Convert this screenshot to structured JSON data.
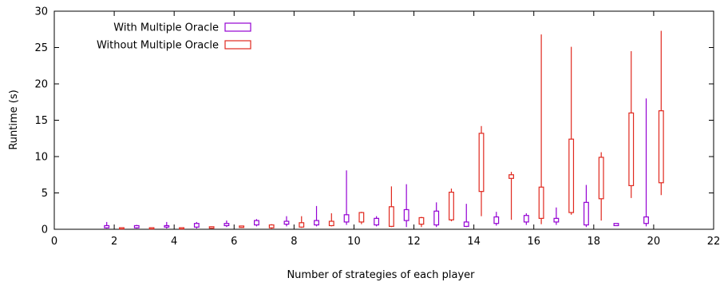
{
  "chart_data": {
    "type": "boxplot",
    "title": "",
    "xlabel": "Number of strategies of each player",
    "ylabel": "Runtime (s)",
    "xlim": [
      0,
      22
    ],
    "ylim": [
      0,
      30
    ],
    "xticks": [
      0,
      2,
      4,
      6,
      8,
      10,
      12,
      14,
      16,
      18,
      20,
      22
    ],
    "yticks": [
      0,
      5,
      10,
      15,
      20,
      25,
      30
    ],
    "grid": false,
    "legend_position": "top-left",
    "series": [
      {
        "name": "With Multiple Oracle",
        "color": "#9400d3",
        "offset": -0.25,
        "boxes": [
          {
            "x": 2,
            "min": 0.1,
            "q1": 0.2,
            "q3": 0.5,
            "max": 1.0
          },
          {
            "x": 3,
            "min": 0.1,
            "q1": 0.2,
            "q3": 0.5,
            "max": 0.6
          },
          {
            "x": 4,
            "min": 0.1,
            "q1": 0.3,
            "q3": 0.5,
            "max": 1.0
          },
          {
            "x": 5,
            "min": 0.1,
            "q1": 0.3,
            "q3": 0.8,
            "max": 1.0
          },
          {
            "x": 6,
            "min": 0.3,
            "q1": 0.5,
            "q3": 0.8,
            "max": 1.2
          },
          {
            "x": 7,
            "min": 0.4,
            "q1": 0.6,
            "q3": 1.2,
            "max": 1.4
          },
          {
            "x": 8,
            "min": 0.4,
            "q1": 0.7,
            "q3": 1.1,
            "max": 1.8
          },
          {
            "x": 9,
            "min": 0.4,
            "q1": 0.6,
            "q3": 1.2,
            "max": 3.2
          },
          {
            "x": 10,
            "min": 0.6,
            "q1": 1.0,
            "q3": 2.0,
            "max": 8.1
          },
          {
            "x": 11,
            "min": 0.4,
            "q1": 0.6,
            "q3": 1.5,
            "max": 1.8
          },
          {
            "x": 12,
            "min": 0.3,
            "q1": 1.2,
            "q3": 2.7,
            "max": 6.2
          },
          {
            "x": 13,
            "min": 0.3,
            "q1": 0.6,
            "q3": 2.5,
            "max": 3.7
          },
          {
            "x": 14,
            "min": 0.3,
            "q1": 0.4,
            "q3": 1.0,
            "max": 3.5
          },
          {
            "x": 15,
            "min": 0.5,
            "q1": 0.8,
            "q3": 1.7,
            "max": 2.4
          },
          {
            "x": 16,
            "min": 0.6,
            "q1": 1.0,
            "q3": 1.9,
            "max": 2.2
          },
          {
            "x": 17,
            "min": 0.6,
            "q1": 1.0,
            "q3": 1.5,
            "max": 3.0
          },
          {
            "x": 18,
            "min": 0.3,
            "q1": 0.6,
            "q3": 3.7,
            "max": 6.1
          },
          {
            "x": 19,
            "min": 0.5,
            "q1": 0.5,
            "q3": 0.8,
            "max": 0.8
          },
          {
            "x": 20,
            "min": 0.4,
            "q1": 0.8,
            "q3": 1.7,
            "max": 18.0
          }
        ]
      },
      {
        "name": "Without Multiple Oracle",
        "color": "#e0281e",
        "offset": 0.25,
        "boxes": [
          {
            "x": 2,
            "min": 0.0,
            "q1": 0.05,
            "q3": 0.15,
            "max": 0.2
          },
          {
            "x": 3,
            "min": 0.0,
            "q1": 0.05,
            "q3": 0.2,
            "max": 0.2
          },
          {
            "x": 4,
            "min": 0.0,
            "q1": 0.05,
            "q3": 0.2,
            "max": 0.2
          },
          {
            "x": 5,
            "min": 0.1,
            "q1": 0.15,
            "q3": 0.35,
            "max": 0.4
          },
          {
            "x": 6,
            "min": 0.2,
            "q1": 0.25,
            "q3": 0.45,
            "max": 0.5
          },
          {
            "x": 7,
            "min": 0.0,
            "q1": 0.2,
            "q3": 0.6,
            "max": 0.7
          },
          {
            "x": 8,
            "min": 0.2,
            "q1": 0.3,
            "q3": 0.9,
            "max": 1.8
          },
          {
            "x": 9,
            "min": 0.4,
            "q1": 0.5,
            "q3": 1.1,
            "max": 2.2
          },
          {
            "x": 10,
            "min": 0.7,
            "q1": 1.0,
            "q3": 2.3,
            "max": 2.4
          },
          {
            "x": 11,
            "min": 0.3,
            "q1": 0.4,
            "q3": 3.1,
            "max": 5.9
          },
          {
            "x": 12,
            "min": 0.3,
            "q1": 0.7,
            "q3": 1.6,
            "max": 1.7
          },
          {
            "x": 13,
            "min": 1.1,
            "q1": 1.3,
            "q3": 5.1,
            "max": 5.6
          },
          {
            "x": 14,
            "min": 1.8,
            "q1": 5.2,
            "q3": 13.2,
            "max": 14.2
          },
          {
            "x": 15,
            "min": 1.3,
            "q1": 7.0,
            "q3": 7.5,
            "max": 7.9
          },
          {
            "x": 16,
            "min": 0.7,
            "q1": 1.5,
            "q3": 5.8,
            "max": 26.8
          },
          {
            "x": 17,
            "min": 2.0,
            "q1": 2.3,
            "q3": 12.4,
            "max": 25.1
          },
          {
            "x": 18,
            "min": 1.2,
            "q1": 4.2,
            "q3": 9.9,
            "max": 10.6
          },
          {
            "x": 19,
            "min": 4.3,
            "q1": 6.0,
            "q3": 16.0,
            "max": 24.5
          },
          {
            "x": 20,
            "min": 4.7,
            "q1": 6.4,
            "q3": 16.3,
            "max": 27.3
          }
        ]
      }
    ]
  }
}
